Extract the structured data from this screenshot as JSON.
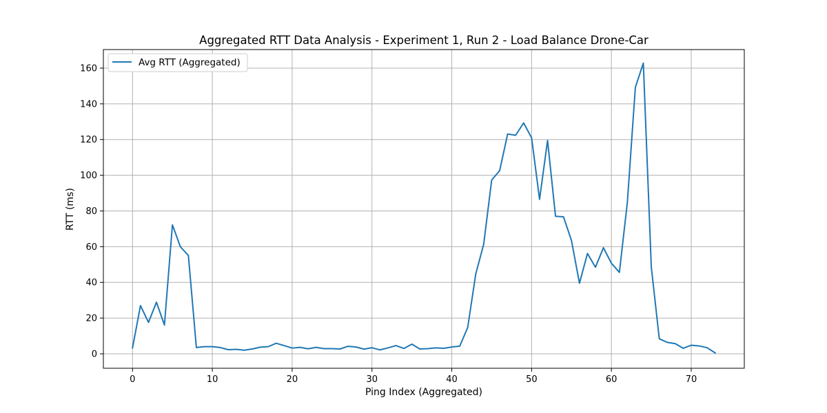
{
  "chart_data": {
    "type": "line",
    "title": "Aggregated RTT Data Analysis - Experiment 1, Run 2 - Load Balance Drone-Car",
    "xlabel": "Ping Index (Aggregated)",
    "ylabel": "RTT (ms)",
    "xlim": [
      -3.65,
      76.65
    ],
    "ylim": [
      -8.1,
      170.4
    ],
    "xticks": [
      0,
      10,
      20,
      30,
      40,
      50,
      60,
      70
    ],
    "yticks": [
      0,
      20,
      40,
      60,
      80,
      100,
      120,
      140,
      160
    ],
    "grid": true,
    "legend_position": "upper-left",
    "series_color": "#1f77b4",
    "series": [
      {
        "name": "Avg RTT (Aggregated)",
        "x": [
          0,
          1,
          2,
          3,
          4,
          5,
          6,
          7,
          8,
          9,
          10,
          11,
          12,
          13,
          14,
          15,
          16,
          17,
          18,
          19,
          20,
          21,
          22,
          23,
          24,
          25,
          26,
          27,
          28,
          29,
          30,
          31,
          32,
          33,
          34,
          35,
          36,
          37,
          38,
          39,
          40,
          41,
          42,
          43,
          44,
          45,
          46,
          47,
          48,
          49,
          50,
          51,
          52,
          53,
          54,
          55,
          56,
          57,
          58,
          59,
          60,
          61,
          62,
          63,
          64,
          65,
          66,
          67,
          68,
          69,
          70,
          71,
          72,
          73
        ],
        "y": [
          3.3,
          27.0,
          17.6,
          28.9,
          16.1,
          72.2,
          59.9,
          55.1,
          3.5,
          4.0,
          4.0,
          3.5,
          2.3,
          2.5,
          2.0,
          2.7,
          3.7,
          4.0,
          5.9,
          4.6,
          3.2,
          3.6,
          2.8,
          3.6,
          2.9,
          2.9,
          2.7,
          4.2,
          3.8,
          2.6,
          3.4,
          2.2,
          3.3,
          4.6,
          3.0,
          5.4,
          2.7,
          2.9,
          3.3,
          3.1,
          3.8,
          4.3,
          14.8,
          44.6,
          61.4,
          97.3,
          102.6,
          123.1,
          122.4,
          129.3,
          121.0,
          86.5,
          119.5,
          77.0,
          76.7,
          63.4,
          39.5,
          56.2,
          48.5,
          59.4,
          50.7,
          45.6,
          84.9,
          149.2,
          162.8,
          48.5,
          8.4,
          6.4,
          5.7,
          3.1,
          4.8,
          4.4,
          3.4,
          0.5
        ]
      }
    ]
  }
}
